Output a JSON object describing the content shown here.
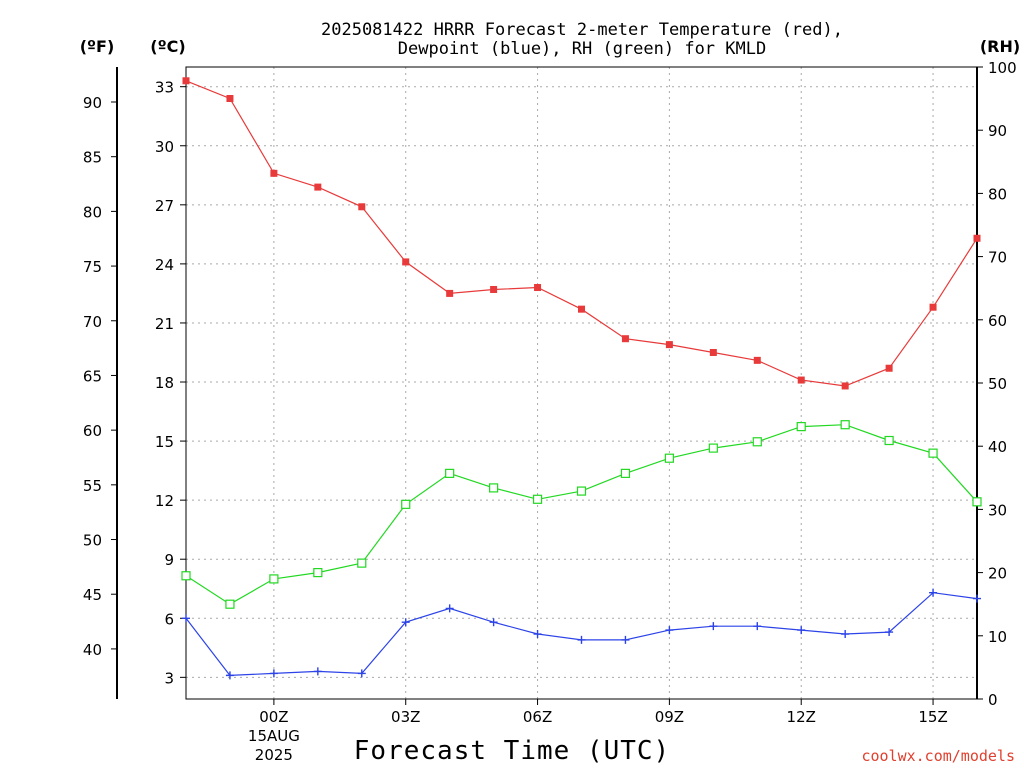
{
  "chart_data": {
    "type": "line",
    "title": [
      "2025081422 HRRR Forecast 2-meter Temperature (red),",
      "Dewpoint (blue), RH (green) for KMLD"
    ],
    "xlabel": "Forecast Time (UTC)",
    "unit_labels": {
      "fahrenheit": "(ºF)",
      "celsius": "(ºC)",
      "rh": "(RH)"
    },
    "x": [
      -2,
      -1,
      0,
      1,
      2,
      3,
      4,
      5,
      6,
      7,
      8,
      9,
      10,
      11,
      12,
      13,
      14,
      15,
      16
    ],
    "xlim": [
      -2,
      16
    ],
    "x_ticks": [
      {
        "x": 0,
        "label": "00Z",
        "sub": [
          "15AUG",
          "2025"
        ]
      },
      {
        "x": 3,
        "label": "03Z"
      },
      {
        "x": 6,
        "label": "06Z"
      },
      {
        "x": 9,
        "label": "09Z"
      },
      {
        "x": 12,
        "label": "12Z"
      },
      {
        "x": 15,
        "label": "15Z"
      }
    ],
    "celsius_axis": {
      "lim": [
        1.9,
        34.0
      ],
      "ticks": [
        "3",
        "6",
        "9",
        "12",
        "15",
        "18",
        "21",
        "24",
        "27",
        "30",
        "33"
      ]
    },
    "fahrenheit_axis": {
      "ticks": [
        "40",
        "45",
        "50",
        "55",
        "60",
        "65",
        "70",
        "75",
        "80",
        "85",
        "90"
      ]
    },
    "rh_axis": {
      "lim": [
        0,
        100
      ],
      "ticks": [
        "0",
        "10",
        "20",
        "30",
        "40",
        "50",
        "60",
        "70",
        "80",
        "90",
        "100"
      ]
    },
    "grid": true,
    "series": [
      {
        "name": "Temperature",
        "axis": "celsius",
        "color": "#e83a3a",
        "marker": "filled-square",
        "values": [
          33.3,
          32.4,
          28.6,
          27.9,
          26.9,
          24.1,
          22.5,
          22.7,
          22.8,
          21.7,
          20.2,
          19.9,
          19.5,
          19.1,
          18.1,
          17.8,
          18.7,
          21.8,
          25.3
        ]
      },
      {
        "name": "Dewpoint",
        "axis": "celsius",
        "color": "#2c43e8",
        "marker": "plus",
        "values": [
          6.0,
          3.1,
          3.2,
          3.3,
          3.2,
          5.8,
          6.5,
          5.8,
          5.2,
          4.9,
          4.9,
          5.4,
          5.6,
          5.6,
          5.4,
          5.2,
          5.3,
          7.3,
          7.0
        ]
      },
      {
        "name": "RH",
        "axis": "rh",
        "color": "#22d822",
        "marker": "open-square",
        "values": [
          19.5,
          15.0,
          19.0,
          20.0,
          21.5,
          30.8,
          35.7,
          33.4,
          31.6,
          32.9,
          35.7,
          38.1,
          39.7,
          40.7,
          43.1,
          43.4,
          40.9,
          38.9,
          31.2
        ]
      }
    ]
  },
  "credit": "coolwx.com/models"
}
